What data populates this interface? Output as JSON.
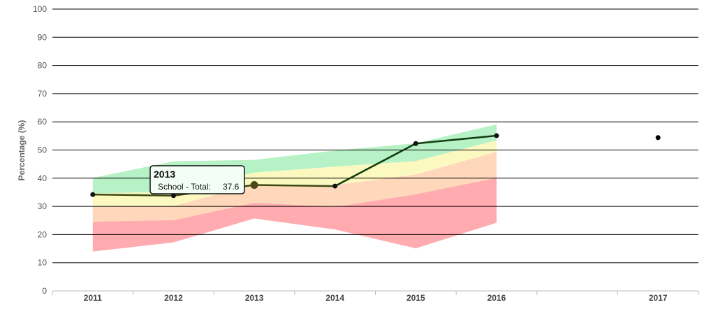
{
  "chart_data": {
    "type": "line",
    "ylabel": "Percentage (%)",
    "ylim": [
      0,
      100
    ],
    "y_ticks": [
      0,
      10,
      20,
      30,
      40,
      50,
      60,
      70,
      80,
      90,
      100
    ],
    "categories": [
      "2011",
      "2012",
      "2013",
      "2014",
      "2015",
      "2016",
      "2017"
    ],
    "grid": true,
    "series": [
      {
        "values": [
          34.2,
          33.8,
          37.6,
          37.2,
          52.3,
          55.1,
          null
        ],
        "color": "#1e4d16"
      },
      {
        "values": [
          null,
          null,
          null,
          null,
          null,
          null,
          54.4
        ],
        "color": "#000000"
      }
    ],
    "bands": [
      {
        "color": "#ffabaf",
        "lower": [
          14.0,
          17.2,
          25.7,
          21.8,
          15.1,
          24.2
        ],
        "upper": [
          24.6,
          25.1,
          31.3,
          29.8,
          34.3,
          40.1
        ]
      },
      {
        "color": "#ffd8bb",
        "lower": [
          24.6,
          25.1,
          31.3,
          29.8,
          34.3,
          40.1
        ],
        "upper": [
          29.8,
          30.1,
          37.9,
          37.6,
          41.3,
          49.4
        ]
      },
      {
        "color": "#fcf9c0",
        "lower": [
          29.8,
          30.1,
          37.9,
          37.6,
          41.3,
          49.4
        ],
        "upper": [
          34.6,
          35.2,
          42.0,
          44.1,
          46.1,
          53.4
        ]
      },
      {
        "color": "#b6f2c6",
        "lower": [
          34.6,
          35.2,
          42.0,
          44.1,
          46.1,
          53.4
        ],
        "upper": [
          40.1,
          46.0,
          46.5,
          49.8,
          52.4,
          59.1
        ]
      }
    ],
    "tooltip": {
      "category": "2013",
      "title": "2013",
      "label": "School - Total:",
      "value": "37.6"
    }
  }
}
